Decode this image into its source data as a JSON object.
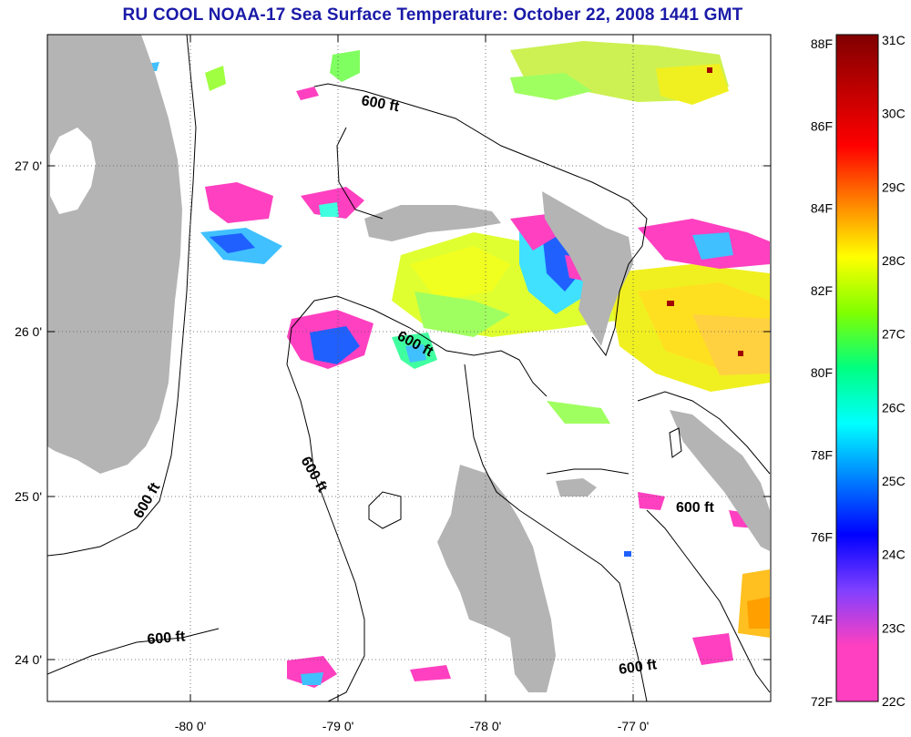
{
  "title": "RU COOL  NOAA-17  Sea Surface Temperature:  October 22, 2008 1441 GMT",
  "axes": {
    "x_ticks": [
      {
        "label": "-80 0'"
      },
      {
        "label": "-79 0'"
      },
      {
        "label": "-78 0'"
      },
      {
        "label": "-77 0'"
      }
    ],
    "y_ticks": [
      {
        "label": "27 0'"
      },
      {
        "label": "26 0'"
      },
      {
        "label": "25 0'"
      },
      {
        "label": "24 0'"
      }
    ]
  },
  "depth_contour_label": "600 ft",
  "depth_labels": [
    "600 ft",
    "600 ft",
    "600 ft",
    "600 ft",
    "600 ft",
    "600 ft",
    "600 ft"
  ],
  "colorbar": {
    "celsius_labels": [
      "31C",
      "30C",
      "29C",
      "28C",
      "27C",
      "26C",
      "25C",
      "24C",
      "23C",
      "22C"
    ],
    "fahrenheit_labels": [
      "88F",
      "86F",
      "84F",
      "82F",
      "80F",
      "78F",
      "76F",
      "74F",
      "72F"
    ],
    "stops": [
      "#ff40c0",
      "#ff40c0",
      "#8040ff",
      "#0000ff",
      "#0080ff",
      "#00ffff",
      "#00ff80",
      "#80ff00",
      "#ffff00",
      "#ff8000",
      "#ff0000",
      "#c00000",
      "#800000"
    ]
  },
  "colors": {
    "land": "#b4b4b4",
    "grid": "#555555",
    "title": "#1a1aa8",
    "cloud_white": "#ffffff"
  }
}
